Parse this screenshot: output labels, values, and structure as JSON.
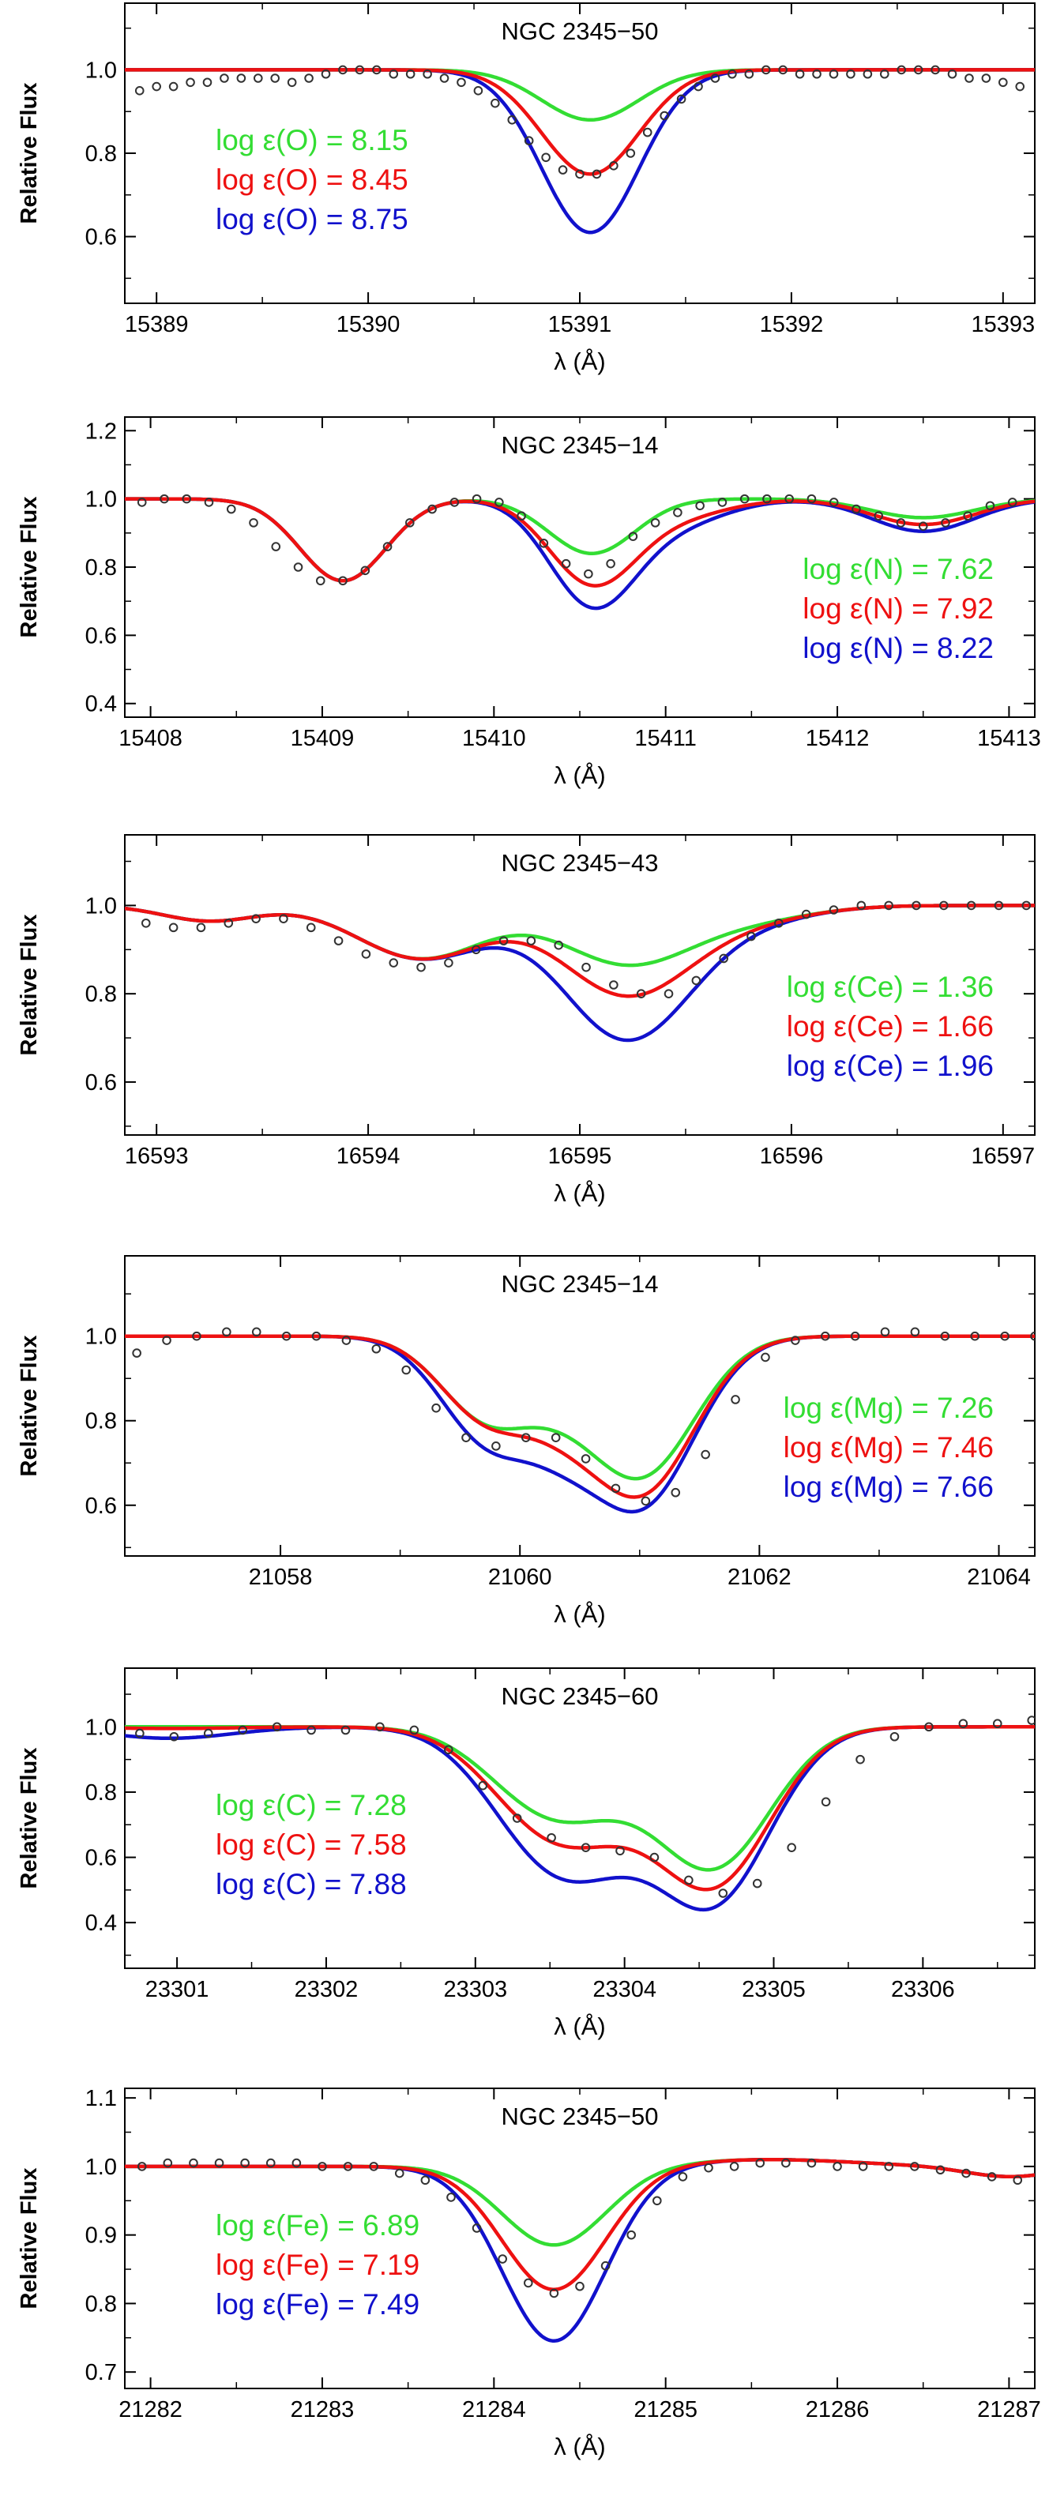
{
  "figure": {
    "axis_style": {
      "frame_color": "#000000",
      "tick_color": "#000000",
      "text_color": "#000000"
    },
    "series_colors": {
      "low": "#33dd33",
      "mid": "#ee1111",
      "high": "#1111cc",
      "observed": "#333333"
    }
  },
  "chart_data": [
    {
      "type": "line",
      "title": "NGC 2345−50",
      "xlabel": "λ (Å)",
      "ylabel": "Relative Flux",
      "xlim": [
        15388.85,
        15393.15
      ],
      "ylim": [
        0.44,
        1.16
      ],
      "xticks": [
        15389,
        15390,
        15391,
        15392,
        15393
      ],
      "yticks": [
        0.6,
        0.8,
        1.0
      ],
      "ytick_labels": [
        "0.6",
        "0.8",
        "1.0"
      ],
      "line_shape": {
        "kind": "gauss",
        "comps": [
          {
            "center": 15391.05,
            "sigma": 0.23,
            "depths": {
              "low": 0.12,
              "mid": 0.25,
              "high": 0.39
            }
          }
        ]
      },
      "legend_position": "left",
      "series": [
        {
          "name": "log ε(O) = 8.15",
          "key": "low"
        },
        {
          "name": "log ε(O) = 8.45",
          "key": "mid"
        },
        {
          "name": "log ε(O) = 8.75",
          "key": "high"
        }
      ],
      "observed": {
        "x": [
          15388.92,
          15389.0,
          15389.08,
          15389.16,
          15389.24,
          15389.32,
          15389.4,
          15389.48,
          15389.56,
          15389.64,
          15389.72,
          15389.8,
          15389.88,
          15389.96,
          15390.04,
          15390.12,
          15390.2,
          15390.28,
          15390.36,
          15390.44,
          15390.52,
          15390.6,
          15390.68,
          15390.76,
          15390.84,
          15390.92,
          15391.0,
          15391.08,
          15391.16,
          15391.24,
          15391.32,
          15391.4,
          15391.48,
          15391.56,
          15391.64,
          15391.72,
          15391.8,
          15391.88,
          15391.96,
          15392.04,
          15392.12,
          15392.2,
          15392.28,
          15392.36,
          15392.44,
          15392.52,
          15392.6,
          15392.68,
          15392.76,
          15392.84,
          15392.92,
          15393.0,
          15393.08
        ],
        "y": [
          0.95,
          0.96,
          0.96,
          0.97,
          0.97,
          0.98,
          0.98,
          0.98,
          0.98,
          0.97,
          0.98,
          0.99,
          1.0,
          1.0,
          1.0,
          0.99,
          0.99,
          0.99,
          0.98,
          0.97,
          0.95,
          0.92,
          0.88,
          0.83,
          0.79,
          0.76,
          0.75,
          0.75,
          0.77,
          0.8,
          0.85,
          0.89,
          0.93,
          0.96,
          0.98,
          0.99,
          0.99,
          1.0,
          1.0,
          0.99,
          0.99,
          0.99,
          0.99,
          0.99,
          0.99,
          1.0,
          1.0,
          1.0,
          0.99,
          0.98,
          0.98,
          0.97,
          0.96
        ]
      }
    },
    {
      "type": "line",
      "title": "NGC 2345−14",
      "xlabel": "λ (Å)",
      "ylabel": "Relative Flux",
      "xlim": [
        15407.85,
        15413.15
      ],
      "ylim": [
        0.36,
        1.24
      ],
      "xticks": [
        15408,
        15409,
        15410,
        15411,
        15412,
        15413
      ],
      "yticks": [
        0.4,
        0.6,
        0.8,
        1.0,
        1.2
      ],
      "ytick_labels": [
        "0.4",
        "0.6",
        "0.8",
        "1.0",
        "1.2"
      ],
      "line_shape": {
        "kind": "gauss",
        "comps": [
          {
            "center": 15409.12,
            "sigma": 0.25,
            "depths": {
              "low": 0.24,
              "mid": 0.24,
              "high": 0.24
            }
          },
          {
            "center": 15410.57,
            "sigma": 0.25,
            "depths": {
              "low": 0.16,
              "mid": 0.24,
              "high": 0.3
            }
          },
          {
            "center": 15411.05,
            "sigma": 0.3,
            "depths": {
              "low": 0.0,
              "mid": 0.05,
              "high": 0.07
            }
          },
          {
            "center": 15412.5,
            "sigma": 0.3,
            "depths": {
              "low": 0.055,
              "mid": 0.075,
              "high": 0.095
            }
          }
        ]
      },
      "legend_position": "right",
      "series": [
        {
          "name": "log ε(N) = 7.62",
          "key": "low"
        },
        {
          "name": "log ε(N) = 7.92",
          "key": "mid"
        },
        {
          "name": "log ε(N) = 8.22",
          "key": "high"
        }
      ],
      "observed": {
        "x": [
          15407.95,
          15408.08,
          15408.21,
          15408.34,
          15408.47,
          15408.6,
          15408.73,
          15408.86,
          15408.99,
          15409.12,
          15409.25,
          15409.38,
          15409.51,
          15409.64,
          15409.77,
          15409.9,
          15410.03,
          15410.16,
          15410.29,
          15410.42,
          15410.55,
          15410.68,
          15410.81,
          15410.94,
          15411.07,
          15411.2,
          15411.33,
          15411.46,
          15411.59,
          15411.72,
          15411.85,
          15411.98,
          15412.11,
          15412.24,
          15412.37,
          15412.5,
          15412.63,
          15412.76,
          15412.89,
          15413.02
        ],
        "y": [
          0.99,
          1.0,
          1.0,
          0.99,
          0.97,
          0.93,
          0.86,
          0.8,
          0.76,
          0.76,
          0.79,
          0.86,
          0.93,
          0.97,
          0.99,
          1.0,
          0.99,
          0.95,
          0.87,
          0.81,
          0.78,
          0.81,
          0.89,
          0.93,
          0.96,
          0.98,
          0.99,
          1.0,
          1.0,
          1.0,
          1.0,
          0.99,
          0.97,
          0.95,
          0.93,
          0.92,
          0.93,
          0.95,
          0.98,
          0.99
        ]
      }
    },
    {
      "type": "line",
      "title": "NGC 2345−43",
      "xlabel": "λ (Å)",
      "ylabel": "Relative Flux",
      "xlim": [
        16592.85,
        16597.15
      ],
      "ylim": [
        0.48,
        1.16
      ],
      "xticks": [
        16593,
        16594,
        16595,
        16596,
        16597
      ],
      "yticks": [
        0.6,
        0.8,
        1.0
      ],
      "ytick_labels": [
        "0.6",
        "0.8",
        "1.0"
      ],
      "line_shape": {
        "kind": "gauss",
        "comps": [
          {
            "center": 16593.25,
            "sigma": 0.22,
            "depths": {
              "low": 0.035,
              "mid": 0.035,
              "high": 0.035
            }
          },
          {
            "center": 16594.25,
            "sigma": 0.3,
            "depths": {
              "low": 0.12,
              "mid": 0.12,
              "high": 0.12
            }
          },
          {
            "center": 16595.22,
            "sigma": 0.3,
            "depths": {
              "low": 0.13,
              "mid": 0.2,
              "high": 0.3
            }
          },
          {
            "center": 16595.8,
            "sigma": 0.3,
            "depths": {
              "low": 0.03,
              "mid": 0.03,
              "high": 0.03
            }
          }
        ]
      },
      "legend_position": "right",
      "series": [
        {
          "name": "log ε(Ce) = 1.36",
          "key": "low"
        },
        {
          "name": "log ε(Ce) = 1.66",
          "key": "mid"
        },
        {
          "name": "log ε(Ce) = 1.96",
          "key": "high"
        }
      ],
      "observed": {
        "x": [
          16592.95,
          16593.08,
          16593.21,
          16593.34,
          16593.47,
          16593.6,
          16593.73,
          16593.86,
          16593.99,
          16594.12,
          16594.25,
          16594.38,
          16594.51,
          16594.64,
          16594.77,
          16594.9,
          16595.03,
          16595.16,
          16595.29,
          16595.42,
          16595.55,
          16595.68,
          16595.81,
          16595.94,
          16596.07,
          16596.2,
          16596.33,
          16596.46,
          16596.59,
          16596.72,
          16596.85,
          16596.98,
          16597.11
        ],
        "y": [
          0.96,
          0.95,
          0.95,
          0.96,
          0.97,
          0.97,
          0.95,
          0.92,
          0.89,
          0.87,
          0.86,
          0.87,
          0.9,
          0.92,
          0.92,
          0.91,
          0.86,
          0.82,
          0.8,
          0.8,
          0.83,
          0.88,
          0.93,
          0.96,
          0.98,
          0.99,
          1.0,
          1.0,
          1.0,
          1.0,
          1.0,
          1.0,
          1.0
        ]
      }
    },
    {
      "type": "line",
      "title": "NGC 2345−14",
      "xlabel": "λ (Å)",
      "ylabel": "Relative Flux",
      "xlim": [
        21056.7,
        21064.3
      ],
      "ylim": [
        0.48,
        1.19
      ],
      "xticks": [
        21058,
        21060,
        21062,
        21064
      ],
      "yticks": [
        0.6,
        0.8,
        1.0
      ],
      "ytick_labels": [
        "0.6",
        "0.8",
        "1.0"
      ],
      "line_shape": {
        "kind": "gauss",
        "comps": [
          {
            "center": 21059.75,
            "sigma": 0.4,
            "depths": {
              "low": 0.2,
              "mid": 0.2,
              "high": 0.25
            }
          },
          {
            "center": 21061.0,
            "sigma": 0.45,
            "depths": {
              "low": 0.33,
              "mid": 0.37,
              "high": 0.4
            }
          },
          {
            "center": 21060.35,
            "sigma": 0.3,
            "depths": {
              "low": 0.05,
              "mid": 0.08,
              "high": 0.11
            }
          }
        ]
      },
      "legend_position": "right",
      "series": [
        {
          "name": "log ε(Mg) = 7.26",
          "key": "low"
        },
        {
          "name": "log ε(Mg) = 7.46",
          "key": "mid"
        },
        {
          "name": "log ε(Mg) = 7.66",
          "key": "high"
        }
      ],
      "observed": {
        "x": [
          21056.8,
          21057.05,
          21057.3,
          21057.55,
          21057.8,
          21058.05,
          21058.3,
          21058.55,
          21058.8,
          21059.05,
          21059.3,
          21059.55,
          21059.8,
          21060.05,
          21060.3,
          21060.55,
          21060.8,
          21061.05,
          21061.3,
          21061.55,
          21061.8,
          21062.05,
          21062.3,
          21062.55,
          21062.8,
          21063.05,
          21063.3,
          21063.55,
          21063.8,
          21064.05,
          21064.3
        ],
        "y": [
          0.96,
          0.99,
          1.0,
          1.01,
          1.01,
          1.0,
          1.0,
          0.99,
          0.97,
          0.92,
          0.83,
          0.76,
          0.74,
          0.76,
          0.76,
          0.71,
          0.64,
          0.61,
          0.63,
          0.72,
          0.85,
          0.95,
          0.99,
          1.0,
          1.0,
          1.01,
          1.01,
          1.0,
          1.0,
          1.0,
          1.0
        ]
      }
    },
    {
      "type": "line",
      "title": "NGC 2345−60",
      "xlabel": "λ (Å)",
      "ylabel": "Relative Flux",
      "xlim": [
        23300.65,
        23306.75
      ],
      "ylim": [
        0.26,
        1.18
      ],
      "xticks": [
        23301,
        23302,
        23303,
        23304,
        23305,
        23306
      ],
      "yticks": [
        0.4,
        0.6,
        0.8,
        1.0
      ],
      "ytick_labels": [
        "0.4",
        "0.6",
        "0.8",
        "1.0"
      ],
      "line_shape": {
        "kind": "gauss",
        "comps": [
          {
            "center": 23303.5,
            "sigma": 0.4,
            "depths": {
              "low": 0.25,
              "mid": 0.3,
              "high": 0.38
            }
          },
          {
            "center": 23304.6,
            "sigma": 0.38,
            "depths": {
              "low": 0.42,
              "mid": 0.47,
              "high": 0.52
            }
          },
          {
            "center": 23303.95,
            "sigma": 0.35,
            "depths": {
              "low": 0.06,
              "mid": 0.1,
              "high": 0.14
            }
          },
          {
            "center": 23300.95,
            "sigma": 0.42,
            "depths": {
              "low": 0.0,
              "mid": 0.005,
              "high": 0.035
            }
          }
        ]
      },
      "legend_position": "left",
      "series": [
        {
          "name": "log ε(C) = 7.28",
          "key": "low"
        },
        {
          "name": "log ε(C) = 7.58",
          "key": "mid"
        },
        {
          "name": "log ε(C) = 7.88",
          "key": "high"
        }
      ],
      "observed": {
        "x": [
          23300.75,
          23300.98,
          23301.21,
          23301.44,
          23301.67,
          23301.9,
          23302.13,
          23302.36,
          23302.59,
          23302.82,
          23303.05,
          23303.28,
          23303.51,
          23303.74,
          23303.97,
          23304.2,
          23304.43,
          23304.66,
          23304.89,
          23305.12,
          23305.35,
          23305.58,
          23305.81,
          23306.04,
          23306.27,
          23306.5,
          23306.73
        ],
        "y": [
          0.98,
          0.97,
          0.98,
          0.99,
          1.0,
          0.99,
          0.99,
          1.0,
          0.99,
          0.93,
          0.82,
          0.72,
          0.66,
          0.63,
          0.62,
          0.6,
          0.53,
          0.49,
          0.52,
          0.63,
          0.77,
          0.9,
          0.97,
          1.0,
          1.01,
          1.01,
          1.02
        ]
      }
    },
    {
      "type": "line",
      "title": "NGC 2345−50",
      "xlabel": "λ (Å)",
      "ylabel": "Relative Flux",
      "xlim": [
        21281.85,
        21287.15
      ],
      "ylim": [
        0.676,
        1.114
      ],
      "xticks": [
        21282,
        21283,
        21284,
        21285,
        21286,
        21287
      ],
      "yticks": [
        0.7,
        0.8,
        0.9,
        1.0,
        1.1
      ],
      "ytick_labels": [
        "0.7",
        "0.8",
        "0.9",
        "1.0",
        "1.1"
      ],
      "line_shape": {
        "kind": "gauss",
        "comps": [
          {
            "center": 21284.35,
            "sigma": 0.3,
            "depths": {
              "low": 0.115,
              "mid": 0.18,
              "high": 0.255
            }
          },
          {
            "center": 21285.6,
            "sigma": 0.5,
            "depths": {
              "low": -0.01,
              "mid": -0.01,
              "high": -0.01
            }
          },
          {
            "center": 21287.0,
            "sigma": 0.25,
            "depths": {
              "low": 0.015,
              "mid": 0.015,
              "high": 0.015
            }
          }
        ]
      },
      "legend_position": "left",
      "series": [
        {
          "name": "log ε(Fe) = 6.89",
          "key": "low"
        },
        {
          "name": "log ε(Fe) = 7.19",
          "key": "mid"
        },
        {
          "name": "log ε(Fe) = 7.49",
          "key": "high"
        }
      ],
      "observed": {
        "x": [
          21281.95,
          21282.1,
          21282.25,
          21282.4,
          21282.55,
          21282.7,
          21282.85,
          21283.0,
          21283.15,
          21283.3,
          21283.45,
          21283.6,
          21283.75,
          21283.9,
          21284.05,
          21284.2,
          21284.35,
          21284.5,
          21284.65,
          21284.8,
          21284.95,
          21285.1,
          21285.25,
          21285.4,
          21285.55,
          21285.7,
          21285.85,
          21286.0,
          21286.15,
          21286.3,
          21286.45,
          21286.6,
          21286.75,
          21286.9,
          21287.05
        ],
        "y": [
          1.0,
          1.005,
          1.005,
          1.005,
          1.005,
          1.005,
          1.005,
          1.0,
          1.0,
          1.0,
          0.99,
          0.98,
          0.955,
          0.91,
          0.865,
          0.83,
          0.815,
          0.825,
          0.855,
          0.9,
          0.95,
          0.985,
          0.998,
          1.0,
          1.005,
          1.005,
          1.005,
          1.0,
          1.0,
          1.0,
          1.0,
          0.995,
          0.99,
          0.985,
          0.98
        ]
      }
    }
  ]
}
